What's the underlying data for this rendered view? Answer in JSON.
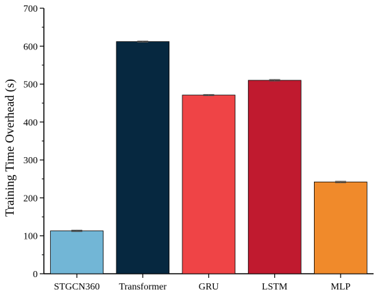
{
  "chart_data": {
    "type": "bar",
    "title": "",
    "xlabel": "",
    "ylabel": "Training Time Overhead (s)",
    "ylim": [
      0,
      700
    ],
    "yticks": [
      0,
      100,
      200,
      300,
      400,
      500,
      600,
      700
    ],
    "grid": false,
    "legend": "none",
    "categories": [
      "STGCN360",
      "Transformer",
      "GRU",
      "LSTM",
      "MLP"
    ],
    "values": [
      113,
      612,
      471,
      510,
      242
    ],
    "errors": [
      2,
      1.5,
      1.5,
      2,
      2
    ],
    "colors": [
      "#72b6d6",
      "#062840",
      "#ef4446",
      "#c01a2f",
      "#f08a2b"
    ]
  }
}
